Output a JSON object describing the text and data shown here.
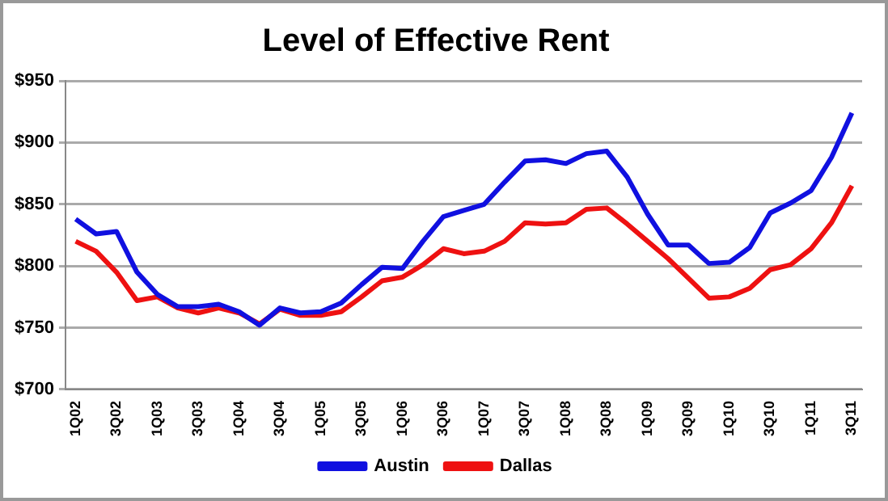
{
  "chart_data": {
    "type": "line",
    "title": "Level of Effective Rent",
    "categories": [
      "1Q02",
      null,
      "3Q02",
      null,
      "1Q03",
      null,
      "3Q03",
      null,
      "1Q04",
      null,
      "3Q04",
      null,
      "1Q05",
      null,
      "3Q05",
      null,
      "1Q06",
      null,
      "3Q06",
      null,
      "1Q07",
      null,
      "3Q07",
      null,
      "1Q08",
      null,
      "3Q08",
      null,
      "1Q09",
      null,
      "3Q09",
      null,
      "1Q10",
      null,
      "3Q10",
      null,
      "1Q11",
      null,
      "3Q11"
    ],
    "series": [
      {
        "name": "Austin",
        "color": "#1010e0",
        "values": [
          838,
          826,
          828,
          795,
          777,
          767,
          767,
          769,
          763,
          752,
          766,
          762,
          763,
          770,
          785,
          799,
          798,
          820,
          840,
          845,
          850,
          868,
          885,
          886,
          883,
          891,
          893,
          872,
          842,
          817,
          817,
          802,
          803,
          815,
          843,
          851,
          861,
          888,
          924
        ]
      },
      {
        "name": "Dallas",
        "color": "#ee1111",
        "values": [
          820,
          812,
          795,
          772,
          775,
          766,
          762,
          766,
          762,
          753,
          765,
          760,
          760,
          763,
          775,
          788,
          791,
          801,
          814,
          810,
          812,
          820,
          835,
          834,
          835,
          846,
          847,
          834,
          820,
          806,
          790,
          774,
          775,
          782,
          797,
          801,
          814,
          835,
          865
        ]
      }
    ],
    "ylim": [
      700,
      950
    ],
    "yticks": [
      {
        "value": 700,
        "label": "$700"
      },
      {
        "value": 750,
        "label": "$750"
      },
      {
        "value": 800,
        "label": "$800"
      },
      {
        "value": 850,
        "label": "$850"
      },
      {
        "value": 900,
        "label": "$900"
      },
      {
        "value": 950,
        "label": "$950"
      }
    ],
    "grid": "y",
    "legend": "bottom",
    "marker": "none",
    "line_style": "solid"
  }
}
